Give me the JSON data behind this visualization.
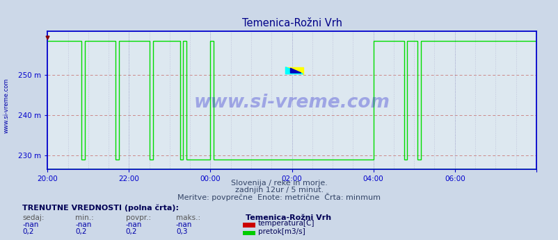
{
  "title": "Temenica-Rožni Vrh",
  "bg_color": "#ccd8e8",
  "plot_bg_color": "#dde8f0",
  "line_color_flow": "#00dd00",
  "axis_color": "#0000cc",
  "title_color": "#000088",
  "watermark_text": "www.si-vreme.com",
  "watermark_color": "#1a1acc",
  "subtitle1": "Slovenija / reke in morje.",
  "subtitle2": "zadnjih 12ur / 5 minut.",
  "subtitle3": "Meritve: povprečne  Enote: metrične  Črta: minmum",
  "footer_bold": "TRENUTNE VREDNOSTI (polna črta):",
  "footer_headers": [
    "sedaj:",
    "min.:",
    "povpr.:",
    "maks.:"
  ],
  "footer_row1": [
    "-nan",
    "-nan",
    "-nan",
    "-nan"
  ],
  "footer_row2": [
    "0,2",
    "0,2",
    "0,2",
    "0,3"
  ],
  "legend_station": "Temenica-Rožni Vrh",
  "legend_items": [
    {
      "label": "temperatura[C]",
      "color": "#cc0000"
    },
    {
      "label": "pretok[m3/s]",
      "color": "#00cc00"
    }
  ],
  "xmin": 0,
  "xmax": 144,
  "ymin": 226.5,
  "ymax": 261,
  "yticks": [
    230,
    240,
    250
  ],
  "ytick_labels": [
    "230 m",
    "240 m",
    "250 m"
  ],
  "xticks": [
    0,
    24,
    48,
    72,
    96,
    120,
    144
  ],
  "xtick_labels": [
    "20:00",
    "22:00",
    "00:00",
    "02:00",
    "04:00",
    "06:00",
    ""
  ],
  "flow_x": [
    0,
    10,
    10,
    11,
    11,
    20,
    20,
    21,
    21,
    30,
    30,
    31,
    31,
    39,
    39,
    40,
    40,
    41,
    41,
    48,
    48,
    49,
    49,
    96,
    96,
    105,
    105,
    106,
    106,
    109,
    109,
    110,
    110,
    144
  ],
  "flow_y": [
    258.5,
    258.5,
    229.0,
    229.0,
    258.5,
    258.5,
    229.0,
    229.0,
    258.5,
    258.5,
    229.0,
    229.0,
    258.5,
    258.5,
    229.0,
    229.0,
    258.5,
    258.5,
    229.0,
    229.0,
    258.5,
    258.5,
    229.0,
    229.0,
    258.5,
    258.5,
    229.0,
    229.0,
    258.5,
    258.5,
    229.0,
    229.0,
    258.5,
    258.5
  ]
}
